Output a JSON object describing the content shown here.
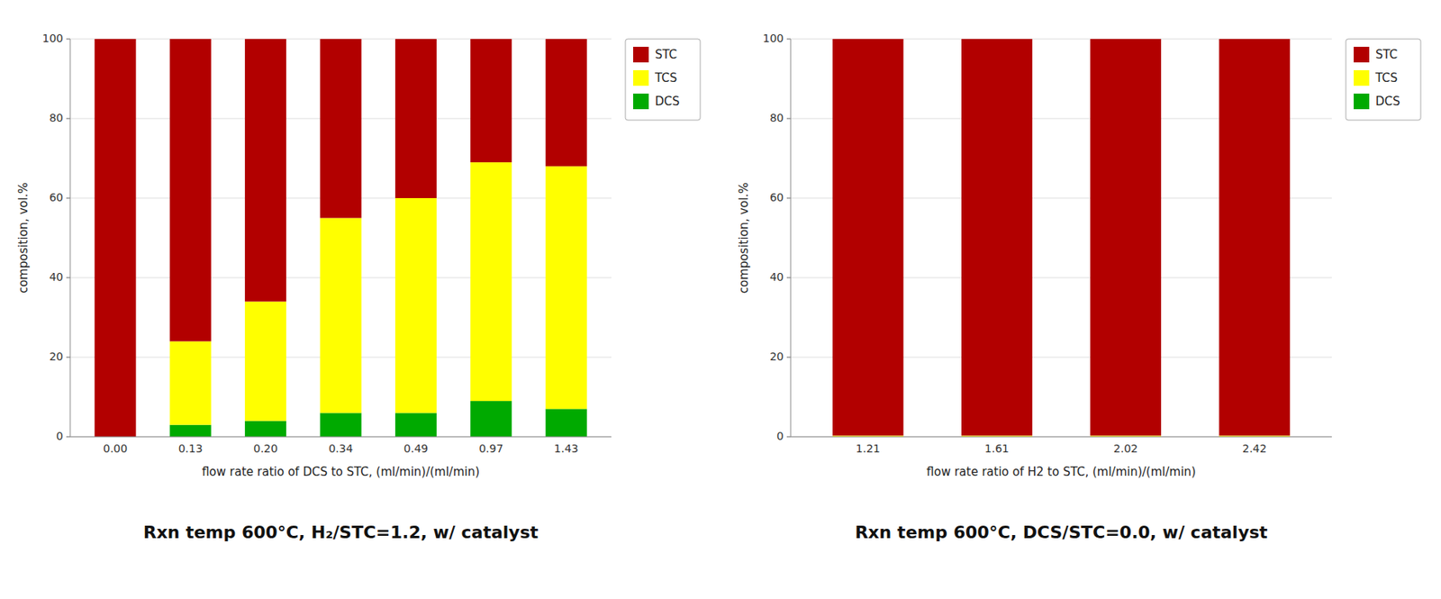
{
  "chart_data": [
    {
      "type": "bar",
      "stacked": true,
      "grid": true,
      "legend": "upper right",
      "categories": [
        "0.00",
        "0.13",
        "0.20",
        "0.34",
        "0.49",
        "0.97",
        "1.43"
      ],
      "series": [
        {
          "name": "DCS",
          "color": "#00AA00",
          "values": [
            0.0,
            3.0,
            4.0,
            6.0,
            6.0,
            9.0,
            7.0
          ]
        },
        {
          "name": "TCS",
          "color": "#FFFF00",
          "values": [
            0.0,
            21.0,
            30.0,
            49.0,
            54.0,
            60.0,
            61.0
          ]
        },
        {
          "name": "STC",
          "color": "#B20000",
          "values": [
            100.0,
            76.0,
            66.0,
            45.0,
            40.0,
            31.0,
            32.0
          ]
        }
      ],
      "xlabel": "flow rate ratio of DCS to STC, (ml/min)/(ml/min)",
      "ylabel": "composition, vol.%",
      "subtitle": "Rxn temp 600°C,  H₂/STC=1.2, w/ catalyst",
      "ylim": [
        0,
        100
      ],
      "yticks": [
        0,
        20,
        40,
        60,
        80,
        100
      ]
    },
    {
      "type": "bar",
      "stacked": true,
      "grid": true,
      "legend": "upper right",
      "categories": [
        "1.21",
        "1.61",
        "2.02",
        "2.42"
      ],
      "series": [
        {
          "name": "DCS",
          "color": "#00AA00",
          "values": [
            0.0,
            0.0,
            0.0,
            0.0
          ]
        },
        {
          "name": "TCS",
          "color": "#FFFF00",
          "values": [
            0.3,
            0.3,
            0.3,
            0.3
          ]
        },
        {
          "name": "STC",
          "color": "#B20000",
          "values": [
            99.7,
            99.7,
            99.7,
            99.7
          ]
        }
      ],
      "xlabel": "flow rate ratio of H2 to STC, (ml/min)/(ml/min)",
      "ylabel": "composition, vol.%",
      "subtitle": "Rxn temp 600°C,  DCS/STC=0.0, w/ catalyst",
      "ylim": [
        0,
        100
      ],
      "yticks": [
        0,
        20,
        40,
        60,
        80,
        100
      ]
    }
  ]
}
